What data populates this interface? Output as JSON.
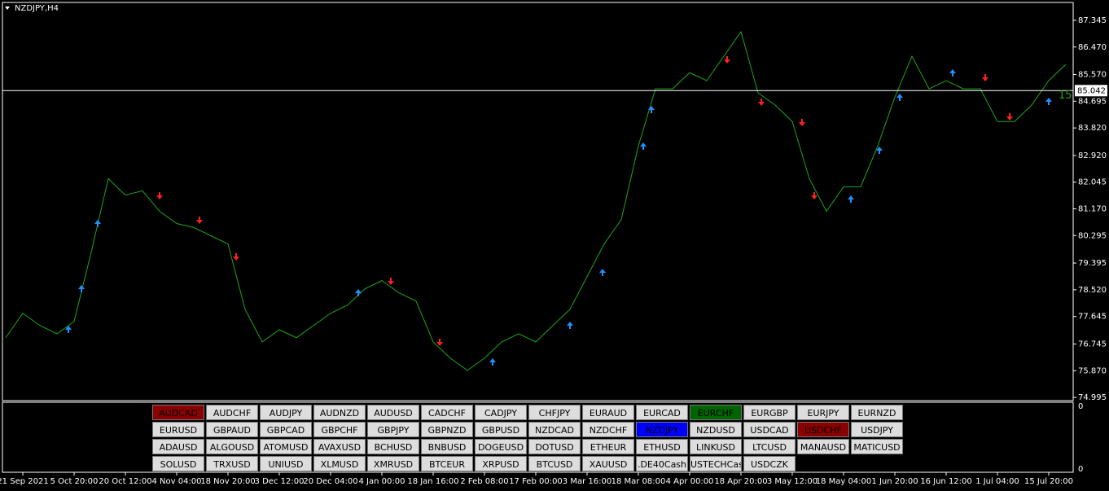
{
  "chart_data": {
    "type": "line",
    "title": "NZDJPY,H4",
    "categories": [
      null,
      "21 Sep 2021",
      null,
      null,
      "5 Oct 20:00",
      null,
      null,
      "20 Oct 12:00",
      null,
      null,
      "4 Nov 04:00",
      null,
      null,
      "18 Nov 20:00",
      null,
      null,
      "3 Dec 12:00",
      null,
      null,
      "20 Dec 04:00",
      null,
      null,
      "4 Jan 00:00",
      null,
      null,
      "18 Jan 16:00",
      null,
      null,
      "2 Feb 08:00",
      null,
      null,
      "17 Feb 00:00",
      null,
      null,
      "3 Mar 16:00",
      null,
      null,
      "18 Mar 08:00",
      null,
      null,
      "4 Apr 00:00",
      null,
      null,
      "18 Apr 20:00",
      null,
      null,
      "3 May 12:00",
      null,
      null,
      "18 May 04:00",
      null,
      null,
      "1 Jun 20:00",
      null,
      null,
      "16 Jun 12:00",
      null,
      null,
      "1 Jul 04:00",
      null,
      null,
      "15 Jul 20:00",
      null
    ],
    "series": [
      {
        "color": "#1fa51f",
        "values": [
          76.95,
          77.75,
          77.35,
          77.08,
          77.48,
          79.75,
          82.16,
          81.62,
          81.76,
          81.09,
          80.69,
          80.56,
          80.29,
          80.02,
          77.88,
          76.81,
          77.21,
          76.95,
          77.35,
          77.75,
          78.02,
          78.55,
          78.82,
          78.42,
          78.15,
          76.81,
          76.28,
          75.88,
          76.28,
          76.81,
          77.08,
          76.81,
          77.35,
          77.88,
          78.95,
          80.02,
          80.82,
          83.23,
          85.1,
          85.1,
          85.63,
          85.37,
          86.17,
          86.97,
          84.97,
          84.57,
          84.03,
          82.16,
          81.09,
          81.89,
          81.89,
          83.23,
          84.83,
          86.17,
          85.1,
          85.37,
          85.1,
          85.1,
          84.03,
          84.03,
          84.57,
          85.37,
          85.9
        ]
      }
    ],
    "ylim": [
      74.89,
      87.93
    ],
    "yticks": [
      74.995,
      {
        "value": 75.87,
        "label": "75.870"
      },
      76.745,
      77.645,
      {
        "value": 78.52,
        "label": "78.520"
      },
      79.395,
      80.295,
      {
        "value": 81.17,
        "label": "81.170"
      },
      82.045,
      {
        "value": 82.92,
        "label": "82.920"
      },
      {
        "value": 83.82,
        "label": "83.820"
      },
      84.695,
      {
        "value": 85.57,
        "label": "85.570"
      },
      {
        "value": 86.47,
        "label": "86.470"
      },
      87.345
    ],
    "current_price": 85.042,
    "timer_label": "15"
  },
  "indicator_axis_labels": [
    "0",
    "0"
  ],
  "buttons": {
    "rows": [
      [
        {
          "label": "AUDCAD",
          "color": "#8b0000"
        },
        {
          "label": "AUDCHF"
        },
        {
          "label": "AUDJPY"
        },
        {
          "label": "AUDNZD"
        },
        {
          "label": "AUDUSD"
        },
        {
          "label": "CADCHF"
        },
        {
          "label": "CADJPY"
        },
        {
          "label": "CHFJPY"
        },
        {
          "label": "EURAUD"
        },
        {
          "label": "EURCAD"
        },
        {
          "label": "EURCHF",
          "color": "#006400"
        },
        {
          "label": "EURGBP"
        },
        {
          "label": "EURJPY"
        },
        {
          "label": "EURNZD"
        }
      ],
      [
        {
          "label": "EURUSD"
        },
        {
          "label": "GBPAUD"
        },
        {
          "label": "GBPCAD"
        },
        {
          "label": "GBPCHF"
        },
        {
          "label": "GBPJPY"
        },
        {
          "label": "GBPNZD"
        },
        {
          "label": "GBPUSD"
        },
        {
          "label": "NZDCAD"
        },
        {
          "label": "NZDCHF"
        },
        {
          "label": "NZDJPY",
          "color": "#0000ff"
        },
        {
          "label": "NZDUSD"
        },
        {
          "label": "USDCAD"
        },
        {
          "label": "USDCHF",
          "color": "#8b0000"
        },
        {
          "label": "USDJPY"
        }
      ],
      [
        {
          "label": "ADAUSD"
        },
        {
          "label": "ALGOUSD"
        },
        {
          "label": "ATOMUSD"
        },
        {
          "label": "AVAXUSD"
        },
        {
          "label": "BCHUSD"
        },
        {
          "label": "BNBUSD"
        },
        {
          "label": "DOGEUSD"
        },
        {
          "label": "DOTUSD"
        },
        {
          "label": "ETHEUR"
        },
        {
          "label": "ETHUSD"
        },
        {
          "label": "LINKUSD"
        },
        {
          "label": "LTCUSD"
        },
        {
          "label": "MANAUSD"
        },
        {
          "label": "MATICUSD"
        }
      ],
      [
        {
          "label": "SOLUSD"
        },
        {
          "label": "TRXUSD"
        },
        {
          "label": "UNIUSD"
        },
        {
          "label": "XLMUSD"
        },
        {
          "label": "XMRUSD"
        },
        {
          "label": "BTCEUR"
        },
        {
          "label": "XRPUSD"
        },
        {
          "label": "BTCUSD"
        },
        {
          "label": "XAUUSD"
        },
        {
          "label": ".DE40Cash"
        },
        {
          "label": "USTECHCash"
        },
        {
          "label": "USDCZK"
        }
      ]
    ]
  }
}
